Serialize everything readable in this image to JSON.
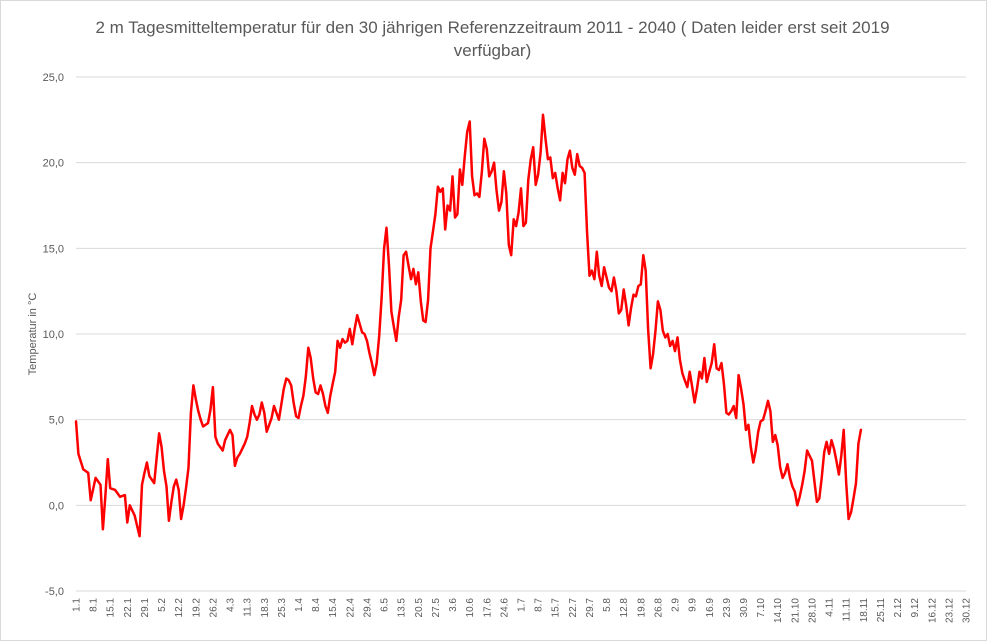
{
  "chart_data": {
    "type": "line",
    "title": "2 m Tagesmitteltemperatur für den 30 jährigen Referenzzeitraum 2011 - 2040 ( Daten leider erst seit 2019 verfügbar)",
    "xlabel": "",
    "ylabel": "Temperatur in °C",
    "ylim": [
      -5,
      25
    ],
    "yticks": [
      "-5,0",
      "0,0",
      "5,0",
      "10,0",
      "15,0",
      "20,0",
      "25,0"
    ],
    "grid": true,
    "xtick_labels": [
      "1.1",
      "8.1",
      "15.1",
      "22.1",
      "29.1",
      "5.2",
      "12.2",
      "19.2",
      "26.2",
      "4.3",
      "11.3",
      "18.3",
      "25.3",
      "1.4",
      "8.4",
      "15.4",
      "22.4",
      "29.4",
      "6.5",
      "13.5",
      "20.5",
      "27.5",
      "3.6",
      "10.6",
      "17.6",
      "24.6",
      "1.7",
      "8.7",
      "15.7",
      "22.7",
      "29.7",
      "5.8",
      "12.8",
      "19.8",
      "26.8",
      "2.9",
      "9.9",
      "16.9",
      "23.9",
      "30.9",
      "7.10",
      "14.10",
      "21.10",
      "28.10",
      "4.11",
      "11.11",
      "18.11",
      "25.11",
      "2.12",
      "9.12",
      "16.12",
      "23.12",
      "30.12"
    ],
    "series": [
      {
        "color": "#ff0000",
        "points": [
          [
            1,
            4.9
          ],
          [
            2,
            3.0
          ],
          [
            4,
            2.1
          ],
          [
            6,
            1.9
          ],
          [
            7,
            0.3
          ],
          [
            9,
            1.6
          ],
          [
            11,
            1.2
          ],
          [
            12,
            -1.4
          ],
          [
            13,
            0.5
          ],
          [
            14,
            2.7
          ],
          [
            15,
            1.0
          ],
          [
            17,
            0.9
          ],
          [
            19,
            0.5
          ],
          [
            21,
            0.6
          ],
          [
            22,
            -1.0
          ],
          [
            23,
            0.0
          ],
          [
            25,
            -0.6
          ],
          [
            26,
            -1.2
          ],
          [
            27,
            -1.8
          ],
          [
            28,
            1.2
          ],
          [
            29,
            1.9
          ],
          [
            30,
            2.5
          ],
          [
            31,
            1.7
          ],
          [
            33,
            1.3
          ],
          [
            34,
            2.8
          ],
          [
            35,
            4.2
          ],
          [
            36,
            3.4
          ],
          [
            37,
            2.0
          ],
          [
            38,
            1.1
          ],
          [
            39,
            -0.9
          ],
          [
            40,
            0.2
          ],
          [
            41,
            1.1
          ],
          [
            42,
            1.5
          ],
          [
            43,
            0.9
          ],
          [
            44,
            -0.8
          ],
          [
            45,
            0.0
          ],
          [
            46,
            1.0
          ],
          [
            47,
            2.2
          ],
          [
            48,
            5.4
          ],
          [
            49,
            7.0
          ],
          [
            50,
            6.2
          ],
          [
            51,
            5.5
          ],
          [
            52,
            5.0
          ],
          [
            53,
            4.6
          ],
          [
            55,
            4.8
          ],
          [
            56,
            5.6
          ],
          [
            57,
            6.9
          ],
          [
            58,
            4.0
          ],
          [
            59,
            3.6
          ],
          [
            61,
            3.2
          ],
          [
            62,
            3.8
          ],
          [
            64,
            4.4
          ],
          [
            65,
            4.1
          ],
          [
            66,
            2.3
          ],
          [
            67,
            2.8
          ],
          [
            68,
            3.0
          ],
          [
            70,
            3.6
          ],
          [
            71,
            4.0
          ],
          [
            72,
            4.8
          ],
          [
            73,
            5.8
          ],
          [
            74,
            5.3
          ],
          [
            75,
            5.0
          ],
          [
            76,
            5.3
          ],
          [
            77,
            6.0
          ],
          [
            78,
            5.4
          ],
          [
            79,
            4.3
          ],
          [
            80,
            4.7
          ],
          [
            81,
            5.1
          ],
          [
            82,
            5.8
          ],
          [
            84,
            5.0
          ],
          [
            86,
            6.8
          ],
          [
            87,
            7.4
          ],
          [
            88,
            7.3
          ],
          [
            89,
            7.0
          ],
          [
            90,
            6.0
          ],
          [
            91,
            5.2
          ],
          [
            92,
            5.1
          ],
          [
            93,
            5.8
          ],
          [
            94,
            6.4
          ],
          [
            95,
            7.5
          ],
          [
            96,
            9.2
          ],
          [
            97,
            8.6
          ],
          [
            98,
            7.4
          ],
          [
            99,
            6.6
          ],
          [
            100,
            6.5
          ],
          [
            101,
            7.0
          ],
          [
            102,
            6.5
          ],
          [
            103,
            5.8
          ],
          [
            104,
            5.4
          ],
          [
            105,
            6.4
          ],
          [
            106,
            7.1
          ],
          [
            107,
            7.8
          ],
          [
            108,
            9.6
          ],
          [
            109,
            9.2
          ],
          [
            110,
            9.7
          ],
          [
            111,
            9.5
          ],
          [
            112,
            9.6
          ],
          [
            113,
            10.3
          ],
          [
            114,
            9.4
          ],
          [
            115,
            10.3
          ],
          [
            116,
            11.1
          ],
          [
            117,
            10.6
          ],
          [
            118,
            10.1
          ],
          [
            119,
            10.0
          ],
          [
            120,
            9.6
          ],
          [
            121,
            8.9
          ],
          [
            122,
            8.3
          ],
          [
            123,
            7.6
          ],
          [
            124,
            8.3
          ],
          [
            125,
            9.9
          ],
          [
            126,
            12.1
          ],
          [
            127,
            15.0
          ],
          [
            128,
            16.2
          ],
          [
            129,
            14.0
          ],
          [
            130,
            11.3
          ],
          [
            131,
            10.4
          ],
          [
            132,
            9.6
          ],
          [
            133,
            11.0
          ],
          [
            134,
            12.0
          ],
          [
            135,
            14.6
          ],
          [
            136,
            14.8
          ],
          [
            137,
            14.0
          ],
          [
            138,
            13.2
          ],
          [
            139,
            13.8
          ],
          [
            140,
            12.9
          ],
          [
            141,
            13.6
          ],
          [
            142,
            11.9
          ],
          [
            143,
            10.8
          ],
          [
            144,
            10.7
          ],
          [
            145,
            12.0
          ],
          [
            146,
            15.0
          ],
          [
            147,
            16.0
          ],
          [
            148,
            17.0
          ],
          [
            149,
            18.6
          ],
          [
            150,
            18.3
          ],
          [
            151,
            18.5
          ],
          [
            152,
            16.1
          ],
          [
            153,
            17.5
          ],
          [
            154,
            17.2
          ],
          [
            155,
            19.2
          ],
          [
            156,
            16.8
          ],
          [
            157,
            17.0
          ],
          [
            158,
            19.6
          ],
          [
            159,
            18.7
          ],
          [
            160,
            20.4
          ],
          [
            161,
            21.8
          ],
          [
            162,
            22.4
          ],
          [
            163,
            19.2
          ],
          [
            164,
            18.1
          ],
          [
            165,
            18.2
          ],
          [
            166,
            18.0
          ],
          [
            167,
            19.5
          ],
          [
            168,
            21.4
          ],
          [
            169,
            20.8
          ],
          [
            170,
            19.2
          ],
          [
            171,
            19.5
          ],
          [
            172,
            20.0
          ],
          [
            173,
            18.4
          ],
          [
            174,
            17.2
          ],
          [
            175,
            17.7
          ],
          [
            176,
            19.5
          ],
          [
            177,
            18.2
          ],
          [
            178,
            15.2
          ],
          [
            179,
            14.6
          ],
          [
            180,
            16.7
          ],
          [
            181,
            16.3
          ],
          [
            182,
            17.1
          ],
          [
            183,
            18.5
          ],
          [
            184,
            16.3
          ],
          [
            185,
            16.5
          ],
          [
            186,
            19.0
          ],
          [
            187,
            20.2
          ],
          [
            188,
            20.9
          ],
          [
            189,
            18.7
          ],
          [
            190,
            19.3
          ],
          [
            191,
            20.6
          ],
          [
            192,
            22.8
          ],
          [
            193,
            21.4
          ],
          [
            194,
            20.2
          ],
          [
            195,
            20.3
          ],
          [
            196,
            19.1
          ],
          [
            197,
            19.4
          ],
          [
            198,
            18.5
          ],
          [
            199,
            17.8
          ],
          [
            200,
            19.4
          ],
          [
            201,
            18.8
          ],
          [
            202,
            20.2
          ],
          [
            203,
            20.7
          ],
          [
            204,
            19.7
          ],
          [
            205,
            19.3
          ],
          [
            206,
            20.5
          ],
          [
            207,
            19.8
          ],
          [
            208,
            19.7
          ],
          [
            209,
            19.4
          ],
          [
            210,
            16.0
          ],
          [
            211,
            13.4
          ],
          [
            212,
            13.7
          ],
          [
            213,
            13.2
          ],
          [
            214,
            14.8
          ],
          [
            215,
            13.4
          ],
          [
            216,
            12.8
          ],
          [
            217,
            13.9
          ],
          [
            218,
            13.3
          ],
          [
            219,
            12.7
          ],
          [
            220,
            12.5
          ],
          [
            221,
            13.3
          ],
          [
            222,
            12.5
          ],
          [
            223,
            11.2
          ],
          [
            224,
            11.4
          ],
          [
            225,
            12.6
          ],
          [
            226,
            11.7
          ],
          [
            227,
            10.5
          ],
          [
            228,
            11.5
          ],
          [
            229,
            12.3
          ],
          [
            230,
            12.2
          ],
          [
            231,
            12.8
          ],
          [
            232,
            12.9
          ],
          [
            233,
            14.6
          ],
          [
            234,
            13.7
          ],
          [
            235,
            10.3
          ],
          [
            236,
            8.0
          ],
          [
            237,
            8.8
          ],
          [
            238,
            10.2
          ],
          [
            239,
            11.9
          ],
          [
            240,
            11.4
          ],
          [
            241,
            10.2
          ],
          [
            242,
            9.8
          ],
          [
            243,
            10.0
          ],
          [
            244,
            9.3
          ],
          [
            245,
            9.6
          ],
          [
            246,
            9.0
          ],
          [
            247,
            9.8
          ],
          [
            248,
            8.5
          ],
          [
            249,
            7.7
          ],
          [
            250,
            7.3
          ],
          [
            251,
            6.9
          ],
          [
            252,
            7.8
          ],
          [
            253,
            6.9
          ],
          [
            254,
            6.0
          ],
          [
            255,
            6.8
          ],
          [
            256,
            7.8
          ],
          [
            257,
            7.4
          ],
          [
            258,
            8.6
          ],
          [
            259,
            7.2
          ],
          [
            260,
            7.8
          ],
          [
            261,
            8.3
          ],
          [
            262,
            9.4
          ],
          [
            263,
            8.0
          ],
          [
            264,
            7.9
          ],
          [
            265,
            8.3
          ],
          [
            266,
            7.1
          ],
          [
            267,
            5.4
          ],
          [
            268,
            5.3
          ],
          [
            269,
            5.5
          ],
          [
            270,
            5.8
          ],
          [
            271,
            5.1
          ],
          [
            272,
            7.6
          ],
          [
            273,
            6.8
          ],
          [
            274,
            5.9
          ],
          [
            275,
            4.4
          ],
          [
            276,
            4.7
          ],
          [
            277,
            3.4
          ],
          [
            278,
            2.5
          ],
          [
            279,
            3.2
          ],
          [
            280,
            4.3
          ],
          [
            281,
            4.9
          ],
          [
            282,
            5.0
          ],
          [
            283,
            5.5
          ],
          [
            284,
            6.1
          ],
          [
            285,
            5.5
          ],
          [
            286,
            3.7
          ],
          [
            287,
            4.1
          ],
          [
            288,
            3.5
          ],
          [
            289,
            2.2
          ],
          [
            290,
            1.6
          ],
          [
            291,
            1.9
          ],
          [
            292,
            2.4
          ],
          [
            293,
            1.6
          ],
          [
            294,
            1.1
          ],
          [
            295,
            0.8
          ],
          [
            296,
            0.0
          ],
          [
            297,
            0.5
          ],
          [
            298,
            1.2
          ],
          [
            299,
            2.0
          ],
          [
            300,
            3.2
          ],
          [
            301,
            2.9
          ],
          [
            302,
            2.6
          ],
          [
            303,
            1.4
          ],
          [
            304,
            0.2
          ],
          [
            305,
            0.4
          ],
          [
            306,
            1.6
          ],
          [
            307,
            3.1
          ],
          [
            308,
            3.7
          ],
          [
            309,
            3.0
          ],
          [
            310,
            3.8
          ],
          [
            311,
            3.3
          ],
          [
            312,
            2.6
          ],
          [
            313,
            1.8
          ],
          [
            314,
            2.9
          ],
          [
            315,
            4.4
          ],
          [
            316,
            1.3
          ],
          [
            317,
            -0.8
          ],
          [
            318,
            -0.4
          ],
          [
            319,
            0.4
          ],
          [
            320,
            1.3
          ],
          [
            321,
            3.6
          ],
          [
            322,
            4.4
          ]
        ]
      }
    ]
  }
}
